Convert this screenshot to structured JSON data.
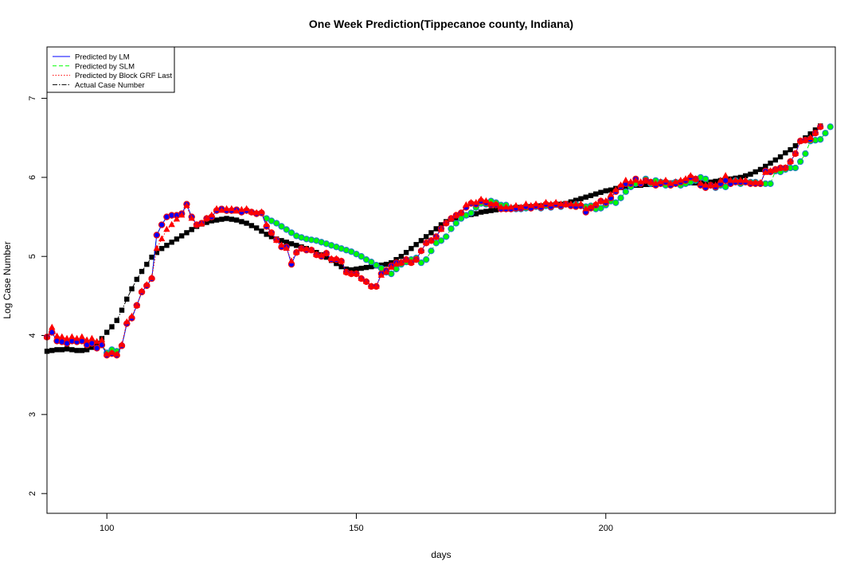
{
  "chart_data": {
    "type": "line",
    "title": "One Week Prediction(Tippecanoe county, Indiana)",
    "xlabel": "days",
    "ylabel": "Log Case Number",
    "xlim": [
      88,
      246
    ],
    "ylim": [
      1.75,
      7.65
    ],
    "xticks": [
      100,
      150,
      200
    ],
    "yticks": [
      2,
      3,
      4,
      5,
      6,
      7
    ],
    "grid": false,
    "legend_position": "top-left",
    "legend": [
      {
        "label": "Predicted by LM",
        "color": "#0000ff",
        "dash": "",
        "key": "lm"
      },
      {
        "label": "Predicted by SLM",
        "color": "#00ff00",
        "dash": "5,3",
        "key": "slm"
      },
      {
        "label": "Predicted by Block GRF Last",
        "color": "#ff0000",
        "dash": "1.5,2",
        "key": "grf"
      },
      {
        "label": "Actual Case Number",
        "color": "#000000",
        "dash": "6,2,1.5,2",
        "key": "actual"
      }
    ],
    "x_start": 88,
    "series": [
      {
        "key": "actual",
        "marker": "square",
        "color": "#000000",
        "values": [
          3.8,
          3.81,
          3.82,
          3.82,
          3.83,
          3.82,
          3.81,
          3.81,
          3.82,
          3.85,
          3.9,
          3.96,
          4.04,
          4.11,
          4.19,
          4.32,
          4.46,
          4.59,
          4.71,
          4.81,
          4.9,
          4.99,
          5.05,
          5.1,
          5.14,
          5.18,
          5.22,
          5.26,
          5.3,
          5.34,
          5.38,
          5.41,
          5.43,
          5.45,
          5.46,
          5.47,
          5.48,
          5.47,
          5.46,
          5.44,
          5.42,
          5.39,
          5.36,
          5.32,
          5.28,
          5.25,
          5.22,
          5.2,
          5.18,
          5.16,
          5.14,
          5.12,
          5.1,
          5.08,
          5.05,
          5.02,
          4.99,
          4.95,
          4.91,
          4.87,
          4.84,
          4.83,
          4.84,
          4.85,
          4.86,
          4.87,
          4.88,
          4.89,
          4.9,
          4.92,
          4.96,
          5.0,
          5.05,
          5.1,
          5.15,
          5.2,
          5.25,
          5.3,
          5.35,
          5.4,
          5.44,
          5.47,
          5.49,
          5.51,
          5.52,
          5.53,
          5.54,
          5.56,
          5.57,
          5.58,
          5.59,
          5.6,
          5.6,
          5.61,
          5.62,
          5.62,
          5.63,
          5.63,
          5.63,
          5.64,
          5.64,
          5.65,
          5.65,
          5.66,
          5.67,
          5.69,
          5.71,
          5.73,
          5.75,
          5.77,
          5.79,
          5.81,
          5.83,
          5.84,
          5.86,
          5.87,
          5.88,
          5.89,
          5.9,
          5.9,
          5.91,
          5.91,
          5.92,
          5.92,
          5.92,
          5.93,
          5.93,
          5.93,
          5.93,
          5.93,
          5.93,
          5.93,
          5.94,
          5.94,
          5.95,
          5.96,
          5.97,
          5.98,
          5.99,
          6.0,
          6.02,
          6.04,
          6.07,
          6.1,
          6.14,
          6.18,
          6.22,
          6.26,
          6.31,
          6.35,
          6.4,
          6.46,
          6.5,
          6.55,
          6.6,
          6.65
        ]
      },
      {
        "key": "slm",
        "marker": "circle",
        "color": "#00ff00",
        "values": [
          3.98,
          4.04,
          3.93,
          3.92,
          3.9,
          3.93,
          3.92,
          3.93,
          3.88,
          3.9,
          3.84,
          3.88,
          3.78,
          3.82,
          3.8,
          3.87,
          4.15,
          4.22,
          4.38,
          4.55,
          4.63,
          4.72,
          5.27,
          5.4,
          5.5,
          5.52,
          5.52,
          5.54,
          5.66,
          5.5,
          5.4,
          5.42,
          5.48,
          5.5,
          5.58,
          5.6,
          5.58,
          5.58,
          5.59,
          5.56,
          5.58,
          5.56,
          5.54,
          5.55,
          5.48,
          5.45,
          5.42,
          5.38,
          5.34,
          5.3,
          5.26,
          5.24,
          5.22,
          5.21,
          5.2,
          5.18,
          5.16,
          5.14,
          5.12,
          5.1,
          5.08,
          5.06,
          5.03,
          5.0,
          4.96,
          4.93,
          4.89,
          4.85,
          4.8,
          4.78,
          4.84,
          4.9,
          4.93,
          4.96,
          4.98,
          4.92,
          4.96,
          5.07,
          5.17,
          5.2,
          5.25,
          5.35,
          5.42,
          5.48,
          5.52,
          5.55,
          5.62,
          5.67,
          5.66,
          5.7,
          5.68,
          5.65,
          5.65,
          5.6,
          5.6,
          5.6,
          5.61,
          5.61,
          5.63,
          5.61,
          5.64,
          5.62,
          5.66,
          5.63,
          5.66,
          5.64,
          5.66,
          5.64,
          5.63,
          5.64,
          5.6,
          5.61,
          5.65,
          5.7,
          5.68,
          5.74,
          5.82,
          5.88,
          5.92,
          5.92,
          5.98,
          5.92,
          5.96,
          5.94,
          5.9,
          5.92,
          5.94,
          5.9,
          5.92,
          5.94,
          5.96,
          6.0,
          5.98,
          5.9,
          5.87,
          5.9,
          5.88,
          5.92,
          5.96,
          5.92,
          5.94,
          5.94,
          5.94,
          5.92,
          5.92,
          5.92,
          6.08,
          6.07,
          6.1,
          6.12,
          6.12,
          6.2,
          6.3,
          6.46,
          6.47,
          6.48,
          6.56,
          6.64
        ]
      },
      {
        "key": "lm",
        "marker": "circle",
        "color": "#0000ff",
        "values": [
          3.98,
          4.04,
          3.93,
          3.92,
          3.9,
          3.93,
          3.92,
          3.93,
          3.88,
          3.9,
          3.84,
          3.88,
          3.75,
          3.77,
          3.75,
          3.87,
          4.15,
          4.22,
          4.38,
          4.55,
          4.63,
          4.72,
          5.27,
          5.4,
          5.5,
          5.52,
          5.52,
          5.54,
          5.66,
          5.5,
          5.4,
          5.42,
          5.48,
          5.5,
          5.58,
          5.6,
          5.58,
          5.58,
          5.59,
          5.56,
          5.58,
          5.56,
          5.54,
          5.55,
          5.38,
          5.3,
          5.21,
          5.12,
          5.12,
          4.9,
          5.05,
          5.1,
          5.08,
          5.08,
          5.02,
          5.0,
          5.04,
          4.96,
          4.96,
          4.94,
          4.8,
          4.78,
          4.78,
          4.72,
          4.68,
          4.62,
          4.62,
          4.78,
          4.82,
          4.88,
          4.92,
          4.92,
          4.96,
          4.92,
          4.96,
          5.07,
          5.17,
          5.2,
          5.25,
          5.35,
          5.42,
          5.48,
          5.52,
          5.55,
          5.62,
          5.67,
          5.66,
          5.7,
          5.68,
          5.65,
          5.65,
          5.6,
          5.6,
          5.6,
          5.61,
          5.61,
          5.63,
          5.61,
          5.64,
          5.62,
          5.66,
          5.63,
          5.66,
          5.64,
          5.66,
          5.64,
          5.63,
          5.64,
          5.56,
          5.61,
          5.65,
          5.7,
          5.68,
          5.74,
          5.82,
          5.88,
          5.92,
          5.92,
          5.98,
          5.92,
          5.96,
          5.94,
          5.9,
          5.92,
          5.94,
          5.9,
          5.92,
          5.94,
          5.96,
          6.0,
          5.98,
          5.9,
          5.87,
          5.9,
          5.88,
          5.92,
          5.96,
          5.92,
          5.94,
          5.94,
          5.94,
          5.92,
          5.92,
          5.92,
          6.08,
          6.07,
          6.1,
          6.12,
          6.12,
          6.2,
          6.3,
          6.46,
          6.47,
          6.48,
          6.56,
          6.64
        ]
      },
      {
        "key": "grf",
        "marker": "triangle",
        "color": "#ff0000",
        "values": [
          3.98,
          4.1,
          3.99,
          3.98,
          3.96,
          3.98,
          3.96,
          3.98,
          3.94,
          3.96,
          3.92,
          3.94,
          3.76,
          3.78,
          3.76,
          3.88,
          4.17,
          4.24,
          4.38,
          4.56,
          4.64,
          4.73,
          5.1,
          5.22,
          5.34,
          5.4,
          5.47,
          5.52,
          5.64,
          5.48,
          5.4,
          5.41,
          5.48,
          5.52,
          5.6,
          5.58,
          5.6,
          5.6,
          5.57,
          5.59,
          5.6,
          5.56,
          5.55,
          5.56,
          5.4,
          5.3,
          5.2,
          5.14,
          5.1,
          4.94,
          5.05,
          5.1,
          5.09,
          5.08,
          5.02,
          5.01,
          5.04,
          4.97,
          4.97,
          4.94,
          4.8,
          4.78,
          4.78,
          4.72,
          4.68,
          4.62,
          4.62,
          4.76,
          4.8,
          4.86,
          4.9,
          4.92,
          4.96,
          4.92,
          4.96,
          5.07,
          5.17,
          5.2,
          5.24,
          5.34,
          5.42,
          5.48,
          5.52,
          5.55,
          5.65,
          5.68,
          5.68,
          5.72,
          5.7,
          5.66,
          5.66,
          5.62,
          5.62,
          5.62,
          5.64,
          5.62,
          5.66,
          5.64,
          5.66,
          5.64,
          5.68,
          5.66,
          5.68,
          5.66,
          5.66,
          5.66,
          5.66,
          5.66,
          5.6,
          5.62,
          5.66,
          5.7,
          5.7,
          5.78,
          5.84,
          5.9,
          5.96,
          5.94,
          5.96,
          5.94,
          5.96,
          5.94,
          5.92,
          5.94,
          5.96,
          5.92,
          5.94,
          5.96,
          5.98,
          6.02,
          5.98,
          5.92,
          5.9,
          5.9,
          5.9,
          5.96,
          6.02,
          5.96,
          5.96,
          5.96,
          5.96,
          5.93,
          5.93,
          5.93,
          6.06,
          6.08,
          6.1,
          6.12,
          6.12,
          6.2,
          6.3,
          6.46,
          6.47,
          6.5,
          6.56,
          6.64
        ]
      }
    ]
  }
}
